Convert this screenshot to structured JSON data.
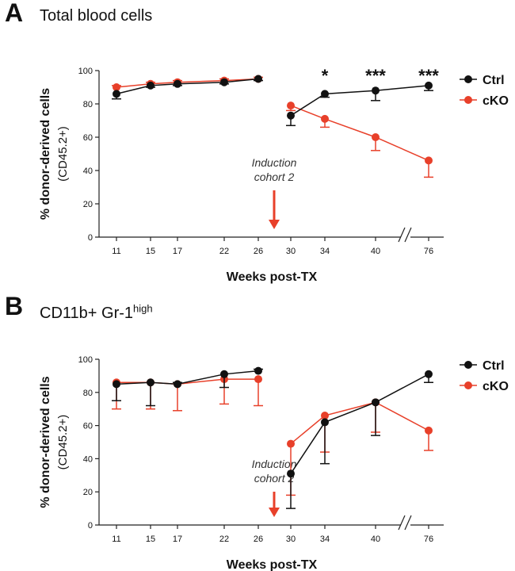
{
  "colors": {
    "ctrl": "#111111",
    "cko": "#e8402a",
    "axis": "#222222",
    "arrow": "#e8402a"
  },
  "chart_data": [
    {
      "panel": "A",
      "type": "line",
      "title": "Total blood cells",
      "title_sup": "",
      "xlabel": "Weeks post-TX",
      "ylabel": "% donor-derived cells",
      "ylabel_sub": "(CD45.2+)",
      "categories": [
        "11",
        "15",
        "17",
        "22",
        "26",
        "30",
        "34",
        "40",
        "76"
      ],
      "ylim": [
        0,
        100
      ],
      "yticks": [
        0,
        20,
        40,
        60,
        80,
        100
      ],
      "annotation": [
        "Induction",
        "cohort 2"
      ],
      "series": [
        {
          "name": "Ctrl",
          "color_key": "ctrl",
          "segments": [
            {
              "points": [
                [
                  0,
                  86,
                  3,
                  -1
                ],
                [
                  1,
                  91,
                  1,
                  -1
                ],
                [
                  2,
                  92,
                  1,
                  -1
                ],
                [
                  3,
                  93,
                  1,
                  -1
                ],
                [
                  4,
                  95,
                  1,
                  -1
                ]
              ]
            },
            {
              "points": [
                [
                  5,
                  73,
                  6,
                  -1
                ],
                [
                  6,
                  86,
                  2,
                  -1
                ],
                [
                  7,
                  88,
                  6,
                  -1
                ],
                [
                  8,
                  91,
                  3,
                  -1
                ]
              ]
            }
          ]
        },
        {
          "name": "cKO",
          "color_key": "cko",
          "segments": [
            {
              "points": [
                [
                  0,
                  90,
                  1,
                  1
                ],
                [
                  1,
                  92,
                  1,
                  1
                ],
                [
                  2,
                  93,
                  1,
                  1
                ],
                [
                  3,
                  94,
                  1,
                  1
                ],
                [
                  4,
                  95,
                  1,
                  1
                ]
              ]
            },
            {
              "points": [
                [
                  5,
                  79,
                  3,
                  -1
                ],
                [
                  6,
                  71,
                  5,
                  -1
                ],
                [
                  7,
                  60,
                  8,
                  -1
                ],
                [
                  8,
                  46,
                  10,
                  -1
                ]
              ]
            }
          ]
        }
      ],
      "significance": [
        {
          "x": 6,
          "label": "*"
        },
        {
          "x": 7,
          "label": "***"
        },
        {
          "x": 8,
          "label": "***"
        }
      ]
    },
    {
      "panel": "B",
      "type": "line",
      "title": "CD11b+  Gr-1",
      "title_sup": "high",
      "xlabel": "Weeks post-TX",
      "ylabel": "% donor-derived cells",
      "ylabel_sub": "(CD45.2+)",
      "categories": [
        "11",
        "15",
        "17",
        "22",
        "26",
        "30",
        "34",
        "40",
        "76"
      ],
      "ylim": [
        0,
        100
      ],
      "yticks": [
        0,
        20,
        40,
        60,
        80,
        100
      ],
      "annotation": [
        "Induction",
        "cohort 2"
      ],
      "series": [
        {
          "name": "Ctrl",
          "color_key": "ctrl",
          "segments": [
            {
              "points": [
                [
                  0,
                  85,
                  10,
                  -1
                ],
                [
                  1,
                  86,
                  14,
                  -1
                ],
                [
                  2,
                  85,
                  1,
                  1
                ],
                [
                  3,
                  91,
                  8,
                  -1
                ],
                [
                  4,
                  93,
                  1,
                  1
                ]
              ]
            },
            {
              "points": [
                [
                  5,
                  31,
                  21,
                  -1
                ],
                [
                  6,
                  62,
                  25,
                  -1
                ],
                [
                  7,
                  74,
                  20,
                  -1
                ],
                [
                  8,
                  91,
                  5,
                  -1
                ]
              ]
            }
          ]
        },
        {
          "name": "cKO",
          "color_key": "cko",
          "segments": [
            {
              "points": [
                [
                  0,
                  86,
                  16,
                  -1
                ],
                [
                  1,
                  86,
                  16,
                  -1
                ],
                [
                  2,
                  85,
                  16,
                  -1
                ],
                [
                  3,
                  88,
                  15,
                  -1
                ],
                [
                  4,
                  88,
                  16,
                  -1
                ]
              ]
            },
            {
              "points": [
                [
                  5,
                  49,
                  31,
                  -1
                ],
                [
                  6,
                  66,
                  22,
                  -1
                ],
                [
                  7,
                  74,
                  18,
                  -1
                ],
                [
                  8,
                  57,
                  12,
                  -1
                ]
              ]
            }
          ]
        }
      ],
      "significance": []
    }
  ]
}
